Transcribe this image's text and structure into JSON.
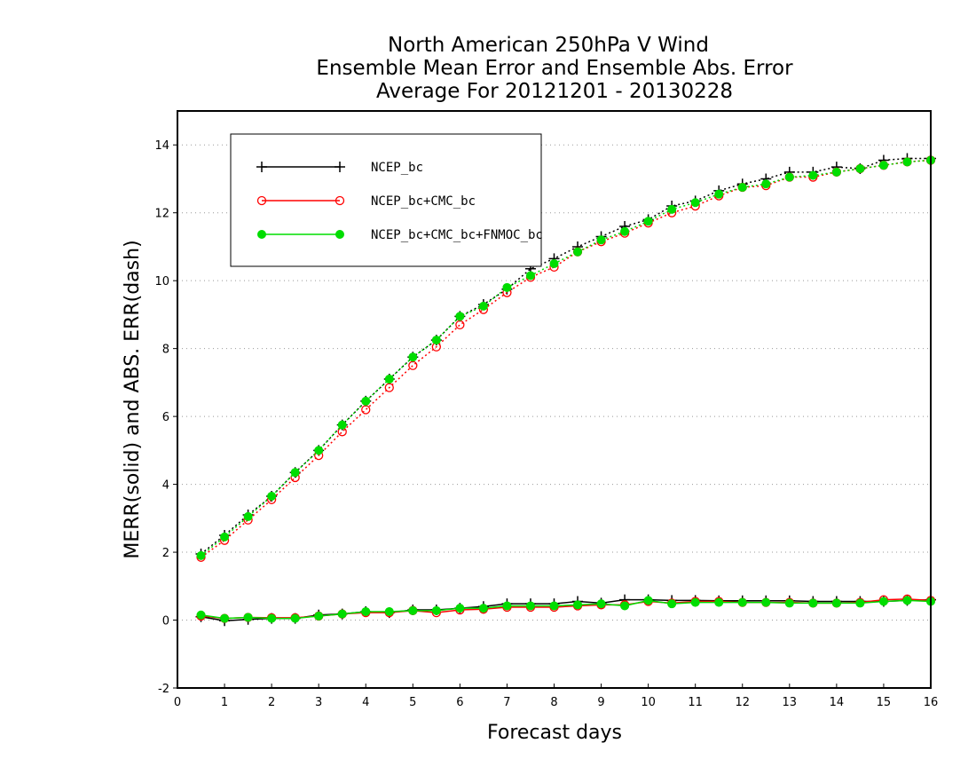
{
  "chart_data": {
    "type": "line",
    "title_lines": [
      "North American 250hPa V Wind",
      "Ensemble Mean Error and Ensemble Abs. Error",
      "Average For 20121201 - 20130228"
    ],
    "xlabel": "Forecast days",
    "ylabel": "MERR(solid) and ABS. ERR(dash)",
    "xlim": [
      0,
      16
    ],
    "ylim": [
      -2,
      15
    ],
    "x_ticks": [
      "0",
      "1",
      "2",
      "3",
      "4",
      "5",
      "6",
      "7",
      "8",
      "9",
      "10",
      "11",
      "12",
      "13",
      "14",
      "15",
      "16"
    ],
    "y_ticks": [
      "-2",
      "0",
      "2",
      "4",
      "6",
      "8",
      "10",
      "12",
      "14"
    ],
    "grid": true,
    "legend_position": "top-left",
    "x": [
      0.5,
      1,
      1.5,
      2,
      2.5,
      3,
      3.5,
      4,
      4.5,
      5,
      5.5,
      6,
      6.5,
      7,
      7.5,
      8,
      8.5,
      9,
      9.5,
      10,
      10.5,
      11,
      11.5,
      12,
      12.5,
      13,
      13.5,
      14,
      14.5,
      15,
      15.5,
      16
    ],
    "series": [
      {
        "name": "NCEP_bc",
        "color": "#000000",
        "marker": "plus",
        "abs_err": [
          1.95,
          2.5,
          3.1,
          3.65,
          4.35,
          5.0,
          5.75,
          6.45,
          7.1,
          7.75,
          8.25,
          8.95,
          9.3,
          9.75,
          10.35,
          10.65,
          11.0,
          11.3,
          11.6,
          11.8,
          12.2,
          12.35,
          12.65,
          12.85,
          13.0,
          13.2,
          13.2,
          13.35,
          13.3,
          13.55,
          13.6,
          13.6
        ],
        "mean_err": [
          0.1,
          -0.02,
          0.02,
          0.05,
          0.05,
          0.15,
          0.18,
          0.25,
          0.22,
          0.3,
          0.3,
          0.35,
          0.4,
          0.48,
          0.48,
          0.48,
          0.55,
          0.5,
          0.6,
          0.6,
          0.58,
          0.58,
          0.57,
          0.57,
          0.57,
          0.57,
          0.55,
          0.55,
          0.55,
          0.55,
          0.58,
          0.6
        ]
      },
      {
        "name": "NCEP_bc+CMC_bc",
        "color": "#ff0000",
        "marker": "open-circle",
        "abs_err": [
          1.85,
          2.35,
          2.95,
          3.55,
          4.2,
          4.85,
          5.55,
          6.2,
          6.85,
          7.5,
          8.05,
          8.7,
          9.15,
          9.65,
          10.1,
          10.4,
          10.85,
          11.15,
          11.4,
          11.7,
          12.0,
          12.2,
          12.5,
          12.75,
          12.8,
          13.05,
          13.05,
          13.2,
          13.3,
          13.4,
          13.5,
          13.55
        ],
        "mean_err": [
          0.12,
          0.05,
          0.08,
          0.07,
          0.07,
          0.12,
          0.18,
          0.22,
          0.22,
          0.28,
          0.22,
          0.3,
          0.32,
          0.38,
          0.38,
          0.38,
          0.42,
          0.45,
          0.45,
          0.55,
          0.5,
          0.55,
          0.55,
          0.52,
          0.52,
          0.52,
          0.5,
          0.5,
          0.52,
          0.6,
          0.62,
          0.58
        ]
      },
      {
        "name": "NCEP_bc+CMC_bc+FNMOC_bc",
        "color": "#00dd00",
        "marker": "filled-circle",
        "abs_err": [
          1.9,
          2.45,
          3.05,
          3.65,
          4.35,
          5.0,
          5.75,
          6.45,
          7.1,
          7.75,
          8.25,
          8.95,
          9.25,
          9.8,
          10.15,
          10.5,
          10.85,
          11.2,
          11.45,
          11.75,
          12.1,
          12.3,
          12.55,
          12.75,
          12.85,
          13.05,
          13.1,
          13.2,
          13.3,
          13.4,
          13.5,
          13.55
        ],
        "mean_err": [
          0.15,
          0.05,
          0.08,
          0.05,
          0.05,
          0.12,
          0.18,
          0.25,
          0.25,
          0.28,
          0.28,
          0.35,
          0.35,
          0.42,
          0.42,
          0.42,
          0.45,
          0.48,
          0.42,
          0.58,
          0.48,
          0.52,
          0.52,
          0.52,
          0.52,
          0.5,
          0.5,
          0.5,
          0.5,
          0.55,
          0.58,
          0.55
        ]
      }
    ]
  }
}
